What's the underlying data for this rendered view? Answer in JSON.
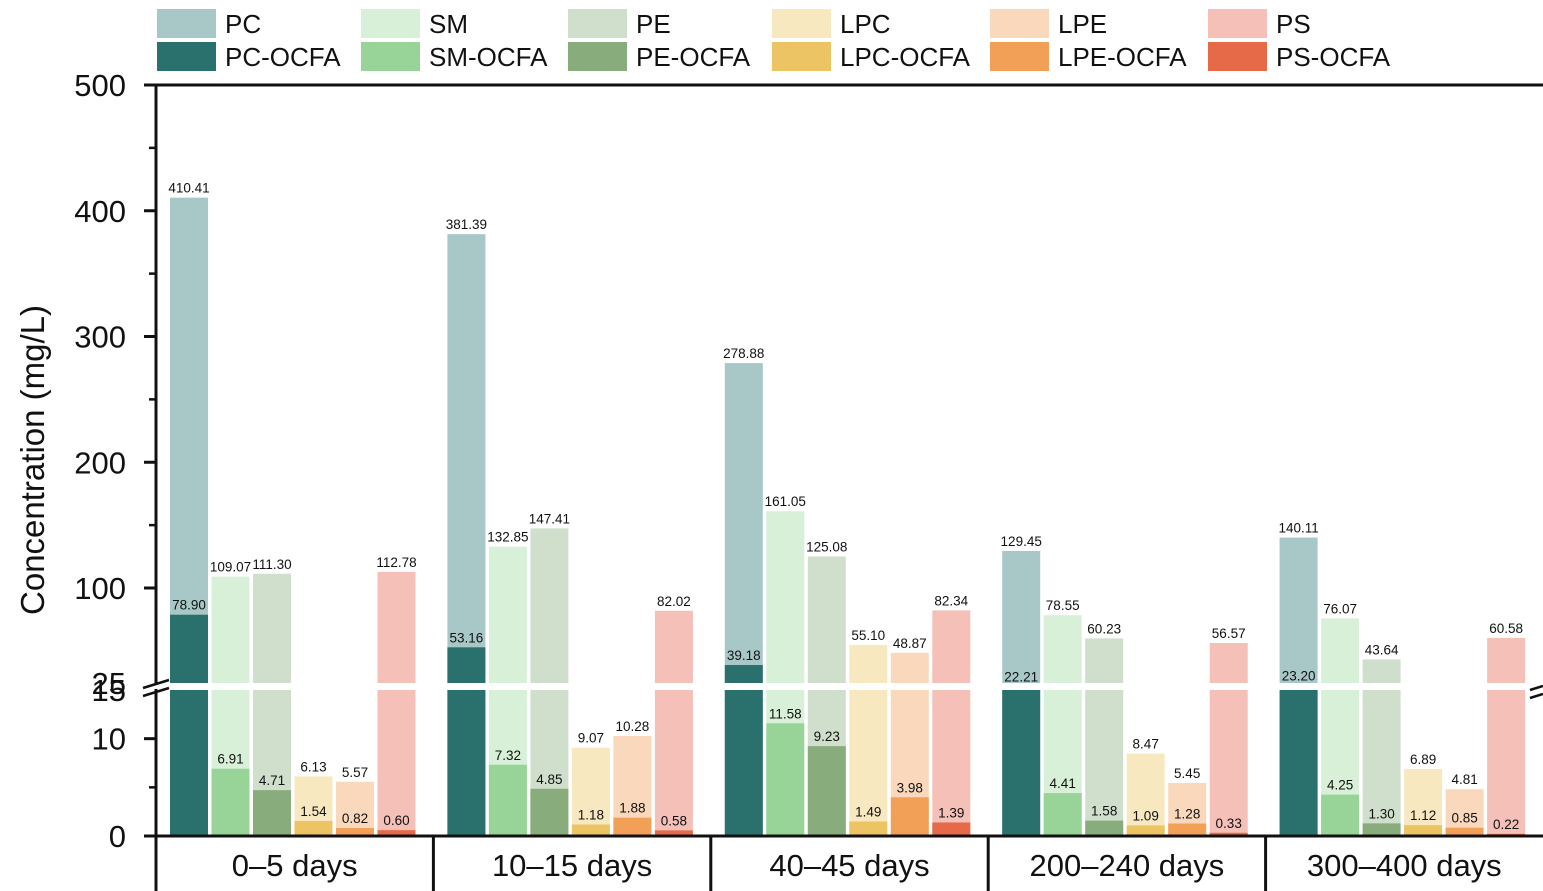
{
  "chart_data": {
    "type": "bar",
    "ylabel": "Concentration (mg/L)",
    "y_axis": {
      "broken": true,
      "lower_range": [
        0,
        15
      ],
      "upper_range": [
        25,
        500
      ],
      "lower_ticks": [
        0,
        10,
        15
      ],
      "upper_ticks": [
        25,
        100,
        200,
        300,
        400,
        500
      ]
    },
    "categories": [
      "0–5 days",
      "10–15 days",
      "40–45 days",
      "200–240 days",
      "300–400 days"
    ],
    "legend_placement": "top",
    "series": [
      {
        "name": "PC",
        "color": "#a8c8c8",
        "values": [
          410.41,
          381.39,
          278.88,
          129.45,
          140.11
        ]
      },
      {
        "name": "PC-OCFA",
        "color": "#2a706c",
        "values": [
          78.9,
          53.16,
          39.18,
          22.21,
          23.2
        ]
      },
      {
        "name": "SM",
        "color": "#d8f0d8",
        "values": [
          109.07,
          132.85,
          161.05,
          78.55,
          76.07
        ]
      },
      {
        "name": "SM-OCFA",
        "color": "#98d498",
        "values": [
          6.91,
          7.32,
          11.58,
          4.41,
          4.25
        ]
      },
      {
        "name": "PE",
        "color": "#d0dfcc",
        "values": [
          111.3,
          147.41,
          125.08,
          60.23,
          43.64
        ]
      },
      {
        "name": "PE-OCFA",
        "color": "#88ac7c",
        "values": [
          4.71,
          4.85,
          9.23,
          1.58,
          1.3
        ]
      },
      {
        "name": "LPC",
        "color": "#f8e8c0",
        "values": [
          6.13,
          9.07,
          55.1,
          8.47,
          6.89
        ]
      },
      {
        "name": "LPC-OCFA",
        "color": "#ecc464",
        "values": [
          1.54,
          1.18,
          1.49,
          1.09,
          1.12
        ]
      },
      {
        "name": "LPE",
        "color": "#fad8bc",
        "values": [
          5.57,
          10.28,
          48.87,
          5.45,
          4.81
        ]
      },
      {
        "name": "LPE-OCFA",
        "color": "#f2a058",
        "values": [
          0.82,
          1.88,
          3.98,
          1.28,
          0.85
        ]
      },
      {
        "name": "PS",
        "color": "#f4c0b8",
        "values": [
          112.78,
          82.02,
          82.34,
          56.57,
          60.58
        ]
      },
      {
        "name": "PS-OCFA",
        "color": "#e66a48",
        "values": [
          0.6,
          0.58,
          1.39,
          0.33,
          0.22
        ]
      }
    ],
    "data_labels": [
      [
        "410.41",
        "381.39",
        "278.88",
        "129.45",
        "140.11"
      ],
      [
        "78.90",
        "53.16",
        "39.18",
        "22.21",
        "23.20"
      ],
      [
        "109.07",
        "132.85",
        "161.05",
        "78.55",
        "76.07"
      ],
      [
        "6.91",
        "7.32",
        "11.58",
        "4.41",
        "4.25"
      ],
      [
        "111.30",
        "147.41",
        "125.08",
        "60.23",
        "43.64"
      ],
      [
        "4.71",
        "4.85",
        "9.23",
        "1.58",
        "1.30"
      ],
      [
        "6.13",
        "9.07",
        "55.10",
        "8.47",
        "6.89"
      ],
      [
        "1.54",
        "1.18",
        "1.49",
        "1.09",
        "1.12"
      ],
      [
        "5.57",
        "10.28",
        "48.87",
        "5.45",
        "4.81"
      ],
      [
        "0.82",
        "1.88",
        "3.98",
        "1.28",
        "0.85"
      ],
      [
        "112.78",
        "82.02",
        "82.34",
        "56.57",
        "60.58"
      ],
      [
        "0.60",
        "0.58",
        "1.39",
        "0.33",
        "0.22"
      ]
    ]
  }
}
